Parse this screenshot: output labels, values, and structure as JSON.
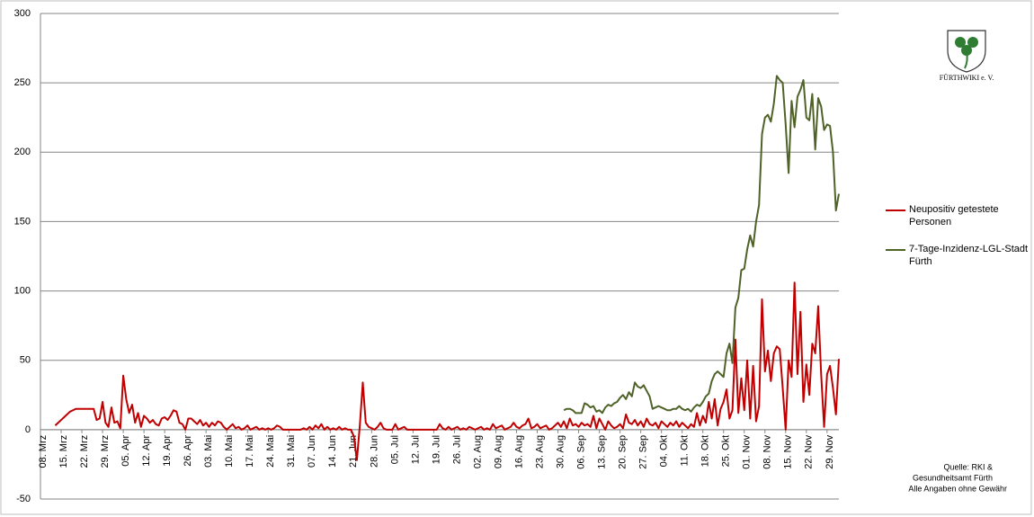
{
  "chart_data": {
    "type": "line",
    "categories": [
      "08. Mrz",
      null,
      null,
      null,
      null,
      null,
      null,
      "15. Mrz",
      null,
      null,
      null,
      null,
      null,
      null,
      "22. Mrz",
      null,
      null,
      null,
      null,
      null,
      null,
      "29. Mrz",
      null,
      null,
      null,
      null,
      null,
      null,
      "05. Apr",
      null,
      null,
      null,
      null,
      null,
      null,
      "12. Apr",
      null,
      null,
      null,
      null,
      null,
      null,
      "19. Apr",
      null,
      null,
      null,
      null,
      null,
      null,
      "26. Apr",
      null,
      null,
      null,
      null,
      null,
      null,
      "03. Mai",
      null,
      null,
      null,
      null,
      null,
      null,
      "10. Mai",
      null,
      null,
      null,
      null,
      null,
      null,
      "17. Mai",
      null,
      null,
      null,
      null,
      null,
      null,
      "24. Mai",
      null,
      null,
      null,
      null,
      null,
      null,
      "31. Mai",
      null,
      null,
      null,
      null,
      null,
      null,
      "07. Jun",
      null,
      null,
      null,
      null,
      null,
      null,
      "14. Jun",
      null,
      null,
      null,
      null,
      null,
      null,
      "21. Jun",
      null,
      null,
      null,
      null,
      null,
      null,
      "28. Jun",
      null,
      null,
      null,
      null,
      null,
      null,
      "05. Jul",
      null,
      null,
      null,
      null,
      null,
      null,
      "12. Jul",
      null,
      null,
      null,
      null,
      null,
      null,
      "19. Jul",
      null,
      null,
      null,
      null,
      null,
      null,
      "26. Jul",
      null,
      null,
      null,
      null,
      null,
      null,
      "02. Aug",
      null,
      null,
      null,
      null,
      null,
      null,
      "09. Aug",
      null,
      null,
      null,
      null,
      null,
      null,
      "16. Aug",
      null,
      null,
      null,
      null,
      null,
      null,
      "23. Aug",
      null,
      null,
      null,
      null,
      null,
      null,
      "30. Aug",
      null,
      null,
      null,
      null,
      null,
      null,
      "06. Sep",
      null,
      null,
      null,
      null,
      null,
      null,
      "13. Sep",
      null,
      null,
      null,
      null,
      null,
      null,
      "20. Sep",
      null,
      null,
      null,
      null,
      null,
      null,
      "27. Sep",
      null,
      null,
      null,
      null,
      null,
      null,
      "04. Okt",
      null,
      null,
      null,
      null,
      null,
      null,
      "11. Okt",
      null,
      null,
      null,
      null,
      null,
      null,
      "18. Okt",
      null,
      null,
      null,
      null,
      null,
      null,
      "25. Okt",
      null,
      null,
      null,
      null,
      null,
      null,
      "01. Nov",
      null,
      null,
      null,
      null,
      null,
      null,
      "08. Nov",
      null,
      null,
      null,
      null,
      null,
      null,
      "15. Nov",
      null,
      null,
      null,
      null,
      null,
      null,
      "22. Nov",
      null,
      null,
      null,
      null,
      null,
      null,
      "29. Nov",
      null,
      null,
      null,
      null
    ],
    "series": [
      {
        "name": "Neupositiv getestete Personen",
        "color": "#c00000",
        "values": [
          null,
          null,
          null,
          null,
          null,
          3,
          5,
          7,
          9,
          11,
          13,
          14,
          15,
          15,
          15,
          15,
          15,
          15,
          15,
          7,
          8,
          20,
          5,
          2,
          16,
          5,
          6,
          1,
          39,
          22,
          12,
          18,
          5,
          12,
          2,
          10,
          8,
          5,
          7,
          4,
          3,
          8,
          9,
          7,
          10,
          14,
          13,
          5,
          4,
          0,
          8,
          8,
          6,
          4,
          7,
          3,
          5,
          2,
          5,
          3,
          6,
          5,
          2,
          0,
          2,
          4,
          1,
          2,
          0,
          1,
          3,
          0,
          1,
          2,
          0,
          1,
          0,
          1,
          0,
          1,
          3,
          2,
          0,
          0,
          0,
          0,
          0,
          0,
          0,
          1,
          0,
          2,
          0,
          3,
          1,
          4,
          0,
          2,
          0,
          1,
          0,
          2,
          0,
          1,
          0,
          0,
          -5,
          -22,
          3,
          34,
          5,
          2,
          1,
          0,
          2,
          5,
          1,
          0,
          0,
          0,
          4,
          0,
          1,
          2,
          0,
          0,
          0,
          0,
          0,
          0,
          0,
          0,
          0,
          0,
          0,
          4,
          1,
          0,
          2,
          0,
          1,
          2,
          0,
          1,
          0,
          2,
          1,
          0,
          1,
          2,
          0,
          1,
          0,
          4,
          1,
          2,
          3,
          0,
          1,
          2,
          5,
          2,
          1,
          3,
          4,
          8,
          1,
          2,
          4,
          1,
          2,
          3,
          0,
          1,
          3,
          5,
          2,
          6,
          1,
          8,
          3,
          4,
          2,
          5,
          3,
          4,
          2,
          10,
          1,
          8,
          4,
          0,
          6,
          3,
          1,
          2,
          4,
          1,
          11,
          5,
          4,
          7,
          3,
          6,
          2,
          8,
          4,
          3,
          5,
          1,
          6,
          4,
          2,
          5,
          3,
          6,
          2,
          5,
          3,
          1,
          4,
          2,
          12,
          3,
          10,
          5,
          20,
          8,
          22,
          3,
          15,
          20,
          29,
          8,
          14,
          65,
          12,
          37,
          14,
          50,
          8,
          46,
          6,
          17,
          94,
          42,
          57,
          35,
          55,
          60,
          58,
          30,
          0,
          50,
          38,
          106,
          40,
          85,
          20,
          47,
          25,
          62,
          55,
          89,
          40,
          2,
          40,
          46,
          30,
          11,
          51
        ]
      },
      {
        "name": "7-Tage-Inzidenz-LGL-Stadt Fürth",
        "color": "#4f6228",
        "values": [
          null,
          null,
          null,
          null,
          null,
          null,
          null,
          null,
          null,
          null,
          null,
          null,
          null,
          null,
          null,
          null,
          null,
          null,
          null,
          null,
          null,
          null,
          null,
          null,
          null,
          null,
          null,
          null,
          null,
          null,
          null,
          null,
          null,
          null,
          null,
          null,
          null,
          null,
          null,
          null,
          null,
          null,
          null,
          null,
          null,
          null,
          null,
          null,
          null,
          null,
          null,
          null,
          null,
          null,
          null,
          null,
          null,
          null,
          null,
          null,
          null,
          null,
          null,
          null,
          null,
          null,
          null,
          null,
          null,
          null,
          null,
          null,
          null,
          null,
          null,
          null,
          null,
          null,
          null,
          null,
          null,
          null,
          null,
          null,
          null,
          null,
          null,
          null,
          null,
          null,
          null,
          null,
          null,
          null,
          null,
          null,
          null,
          null,
          null,
          null,
          null,
          null,
          null,
          null,
          null,
          null,
          null,
          null,
          null,
          null,
          null,
          null,
          null,
          null,
          null,
          null,
          null,
          null,
          null,
          null,
          null,
          null,
          null,
          null,
          null,
          null,
          null,
          null,
          null,
          null,
          null,
          null,
          null,
          null,
          null,
          null,
          null,
          null,
          null,
          null,
          null,
          null,
          null,
          null,
          null,
          null,
          null,
          null,
          null,
          null,
          null,
          null,
          null,
          null,
          null,
          null,
          null,
          null,
          null,
          null,
          null,
          null,
          null,
          null,
          null,
          null,
          null,
          null,
          null,
          null,
          null,
          null,
          null,
          null,
          null,
          null,
          null,
          14,
          15,
          15,
          14,
          12,
          12,
          12,
          19,
          18,
          16,
          17,
          13,
          14,
          12,
          16,
          18,
          17,
          19,
          20,
          23,
          25,
          22,
          27,
          24,
          34,
          31,
          30,
          32,
          28,
          24,
          15,
          16,
          17,
          16,
          15,
          14,
          14,
          15,
          15,
          17,
          15,
          14,
          15,
          13,
          16,
          18,
          17,
          20,
          24,
          26,
          35,
          40,
          42,
          40,
          38,
          55,
          62,
          48,
          88,
          95,
          115,
          116,
          130,
          140,
          132,
          150,
          162,
          213,
          225,
          227,
          222,
          235,
          255,
          252,
          250,
          220,
          185,
          237,
          218,
          240,
          245,
          252,
          225,
          223,
          242,
          202,
          239,
          233,
          216,
          220,
          219,
          200,
          158,
          170
        ]
      }
    ],
    "ylim": [
      -50,
      300
    ],
    "yticks": [
      -50,
      0,
      50,
      100,
      150,
      200,
      250,
      300
    ],
    "grid": true,
    "legend": "right",
    "logo_text": "FÜRTHWIKI e. V.",
    "source": [
      "Quelle: RKI &",
      "Gesundheitsamt Fürth",
      "Alle Angaben ohne Gewähr"
    ]
  }
}
